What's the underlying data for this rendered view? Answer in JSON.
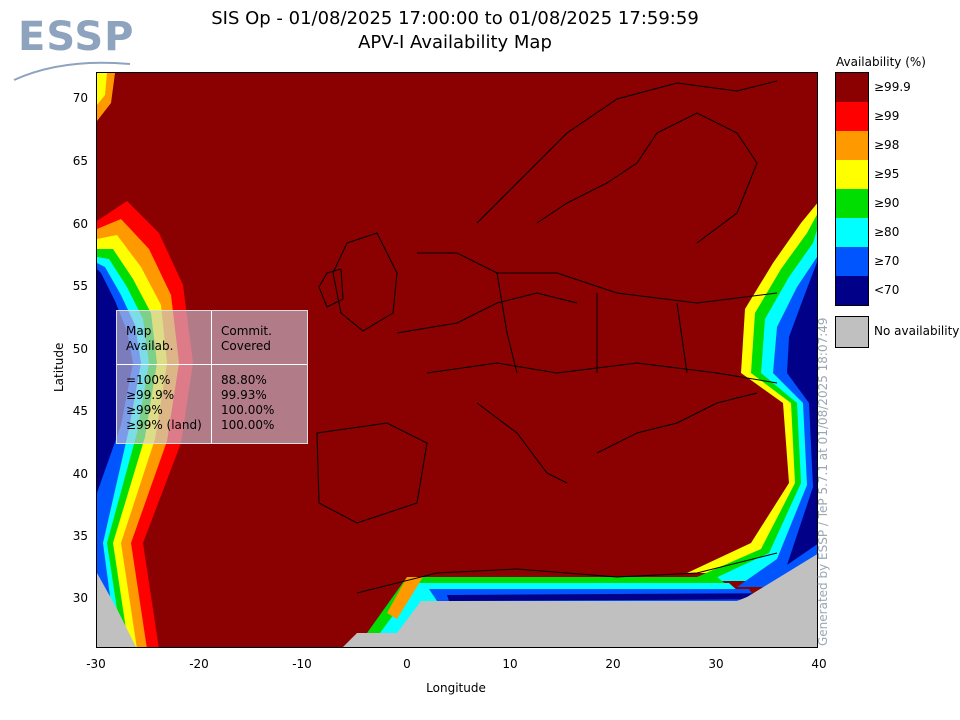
{
  "logo": {
    "text": "ESSP"
  },
  "title": {
    "line1": "SIS Op - 01/08/2025 17:00:00 to 01/08/2025 17:59:59",
    "line2": "APV-I Availability Map"
  },
  "axes": {
    "x_title": "Longitude",
    "y_title": "Latitude",
    "x_ticks": [
      "-30",
      "-20",
      "-10",
      "0",
      "10",
      "20",
      "30",
      "40"
    ],
    "y_ticks": [
      "70",
      "65",
      "60",
      "55",
      "50",
      "45",
      "40",
      "35",
      "30"
    ]
  },
  "stats": {
    "col1_header": "Map\nAvailab.",
    "col2_header": "Commit.\nCovered",
    "col1_values": "=100%\n≥99.9%\n≥99%\n≥99% (land)",
    "col2_values": "88.80%\n99.93%\n100.00%\n100.00%"
  },
  "legend": {
    "title": "Availability (%)",
    "items": [
      {
        "label": "≥99.9",
        "color": "#8b0000"
      },
      {
        "label": "≥99",
        "color": "#ff0000"
      },
      {
        "label": "≥98",
        "color": "#ff9900"
      },
      {
        "label": "≥95",
        "color": "#ffff00"
      },
      {
        "label": "≥90",
        "color": "#00dd00"
      },
      {
        "label": "≥80",
        "color": "#00ffff"
      },
      {
        "label": "≥70",
        "color": "#0055ff"
      },
      {
        "label": "<70",
        "color": "#000088"
      }
    ],
    "no_availability": {
      "label": "No availability",
      "color": "#c0c0c0"
    }
  },
  "credit": "Generated by ESSP / TeP 5.7.1 at 01/08/2025 18:07:49"
}
